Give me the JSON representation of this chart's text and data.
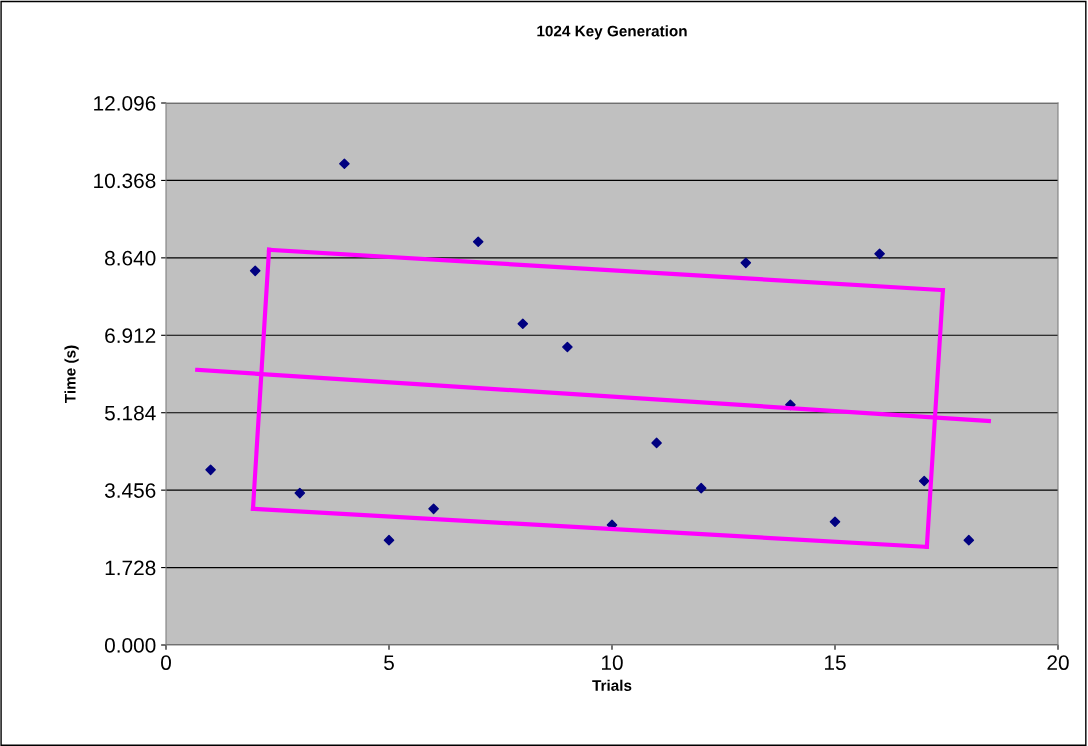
{
  "chart_data": {
    "type": "scatter",
    "title": "1024 Key Generation",
    "xlabel": "Trials",
    "ylabel": "Time (s)",
    "x": [
      1,
      2,
      3,
      4,
      5,
      6,
      7,
      8,
      9,
      10,
      11,
      12,
      13,
      14,
      15,
      16,
      17,
      18
    ],
    "series": [
      {
        "color": "#000080",
        "marker": "diamond",
        "values": [
          3.91,
          8.35,
          3.39,
          10.74,
          2.34,
          3.04,
          9.0,
          7.17,
          6.65,
          2.68,
          4.51,
          3.5,
          8.53,
          5.36,
          2.75,
          8.73,
          3.66,
          2.34
        ]
      },
      {
        "type": "line",
        "color": "#ff00ff",
        "marker": "none",
        "x": [
          0.7,
          18.45
        ],
        "values": [
          6.14,
          5.0
        ]
      },
      {
        "type": "line",
        "color": "#ff00ff",
        "marker": "none",
        "x": [
          2.31,
          17.42
        ],
        "values": [
          8.82,
          7.92
        ]
      },
      {
        "type": "line",
        "color": "#ff00ff",
        "marker": "none",
        "x": [
          17.06,
          17.42
        ],
        "values": [
          2.19,
          7.92
        ]
      },
      {
        "type": "line",
        "color": "#ff00ff",
        "marker": "none",
        "x": [
          1.95,
          17.06
        ],
        "values": [
          3.04,
          2.19
        ]
      },
      {
        "type": "line",
        "color": "#ff00ff",
        "marker": "none",
        "x": [
          1.95,
          2.31
        ],
        "values": [
          3.04,
          8.82
        ]
      }
    ],
    "xlim": [
      0,
      20
    ],
    "xticks": [
      0,
      5,
      10,
      15,
      20
    ],
    "ylim": [
      0,
      12.096
    ],
    "yticks": [
      {
        "value": 0,
        "label": "0.000"
      },
      {
        "value": 1.728,
        "label": "1.728"
      },
      {
        "value": 3.456,
        "label": "3.456"
      },
      {
        "value": 5.184,
        "label": "5.184"
      },
      {
        "value": 6.912,
        "label": "6.912"
      },
      {
        "value": 8.64,
        "label": "8.640"
      },
      {
        "value": 10.368,
        "label": "10.368"
      },
      {
        "value": 12.096,
        "label": "12.096"
      }
    ],
    "grid": "y",
    "legend": false
  }
}
